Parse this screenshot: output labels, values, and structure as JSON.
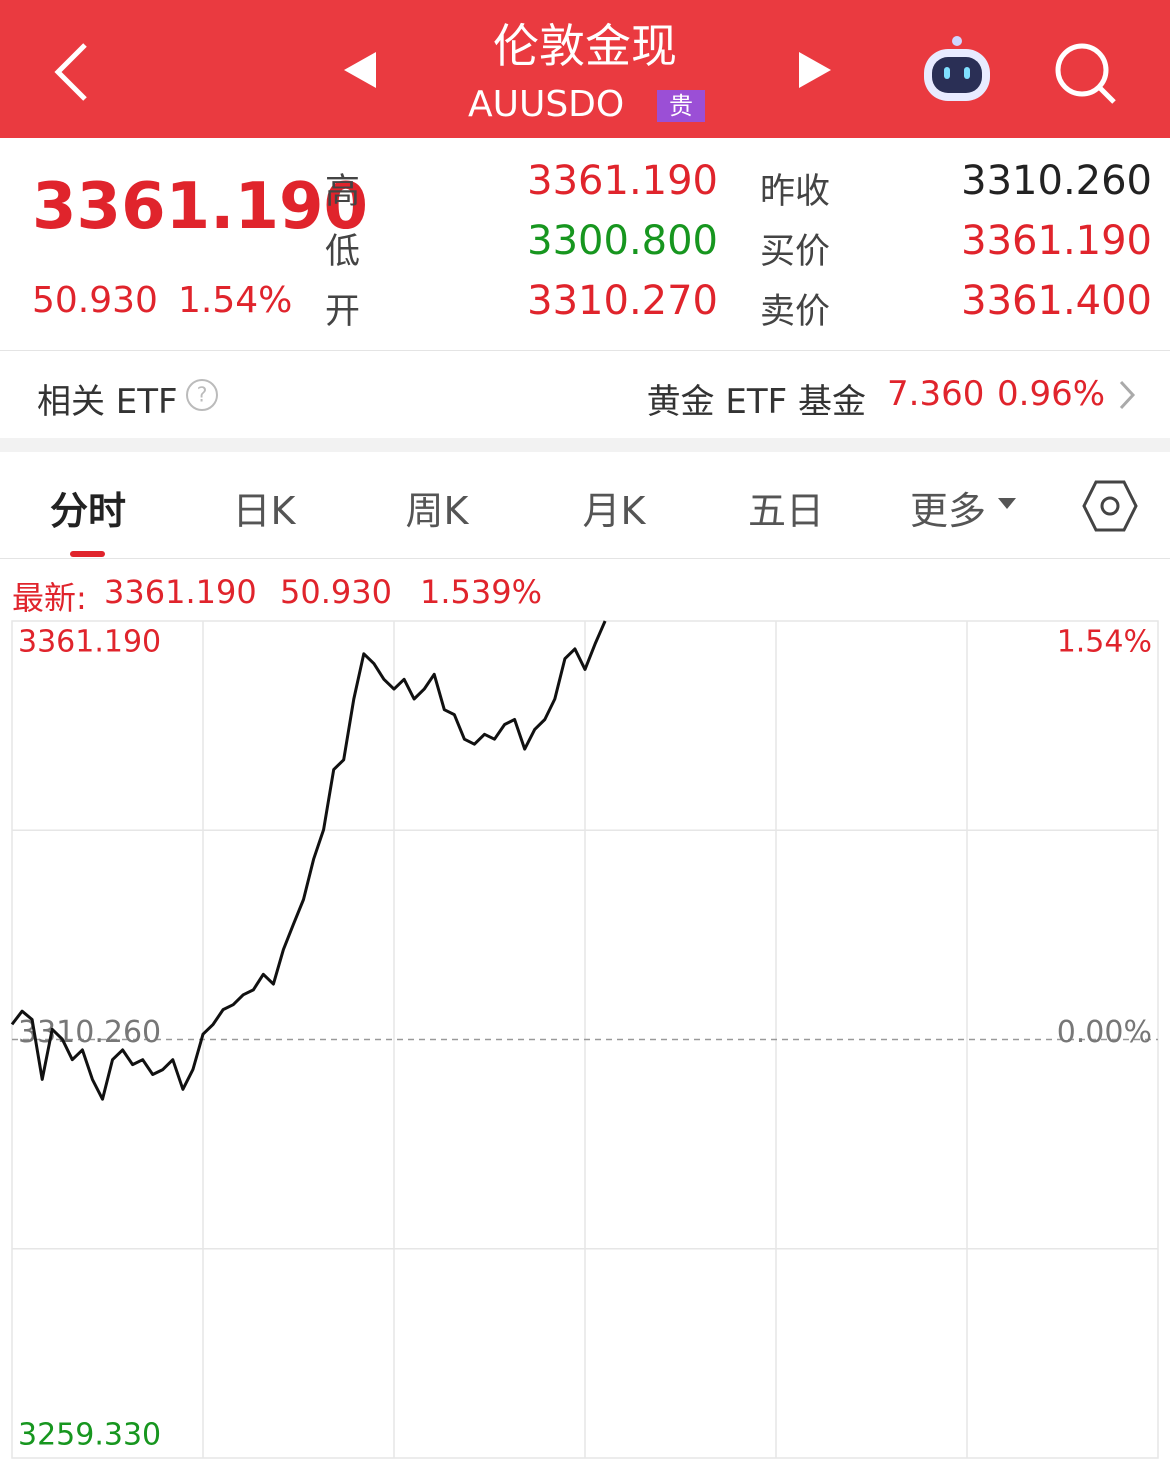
{
  "header": {
    "title": "伦敦金现",
    "code": "AUUSDO",
    "badge": "贵"
  },
  "quote": {
    "price": "3361.190",
    "change": "50.930",
    "change_pct": "1.54%",
    "left_rows": [
      {
        "label": "高",
        "value": "3361.190"
      },
      {
        "label": "低",
        "value": "3300.800"
      },
      {
        "label": "开",
        "value": "3310.270"
      }
    ],
    "right_rows": [
      {
        "label": "昨收",
        "value": "3310.260"
      },
      {
        "label": "买价",
        "value": "3361.190"
      },
      {
        "label": "卖价",
        "value": "3361.400"
      }
    ]
  },
  "etf": {
    "label": "相关 ETF",
    "name": "黄金 ETF 基金",
    "price": "7.360",
    "change_pct": "0.96%"
  },
  "tabs": [
    "分时",
    "日K",
    "周K",
    "月K",
    "五日",
    "更多"
  ],
  "latest": {
    "label": "最新:",
    "price": "3361.190",
    "change": "50.930",
    "change_pct": "1.539%"
  },
  "chart_data": {
    "type": "line",
    "color": "#111111",
    "grid": true,
    "baseline": 3310.26,
    "ylim": [
      3259.33,
      3361.19
    ],
    "yticks": [
      {
        "value": 3361.19,
        "label": "3361.190"
      },
      {
        "value": 3310.26,
        "label": "3310.260"
      },
      {
        "value": 3259.33,
        "label": "3259.330"
      }
    ],
    "y2lim": [
      -1.54,
      1.54
    ],
    "y2ticks": [
      {
        "value": 1.54,
        "label": "1.54%"
      },
      {
        "value": 0,
        "label": "0.00%"
      }
    ],
    "values": [
      3312.1,
      3313.7,
      3312.7,
      3305.4,
      3311.5,
      3310.3,
      3307.8,
      3309.0,
      3305.4,
      3303.0,
      3307.8,
      3309.0,
      3307.2,
      3307.8,
      3306.0,
      3306.6,
      3307.8,
      3304.2,
      3306.6,
      3310.9,
      3312.1,
      3313.9,
      3314.5,
      3315.7,
      3316.3,
      3318.2,
      3317.0,
      3321.2,
      3324.3,
      3327.3,
      3332.2,
      3335.8,
      3343.1,
      3344.3,
      3351.7,
      3357.2,
      3356.0,
      3354.1,
      3352.9,
      3354.1,
      3351.7,
      3352.9,
      3354.7,
      3350.4,
      3349.8,
      3346.8,
      3346.2,
      3347.4,
      3346.8,
      3348.6,
      3349.2,
      3345.6,
      3348.0,
      3349.2,
      3351.7,
      3356.6,
      3357.8,
      3355.3,
      3358.4,
      3361.19,
      null,
      null,
      null,
      null,
      null,
      null,
      null,
      null,
      null,
      null,
      null,
      null,
      null,
      null,
      null,
      null,
      null,
      null,
      null,
      null,
      null,
      null,
      null,
      null,
      null,
      null,
      null,
      null,
      null,
      null,
      null,
      null,
      null,
      null,
      null,
      null,
      null,
      null,
      null,
      null,
      null,
      null,
      null,
      null,
      null,
      null,
      null,
      null,
      null,
      null,
      null,
      null,
      null,
      null,
      null
    ]
  }
}
